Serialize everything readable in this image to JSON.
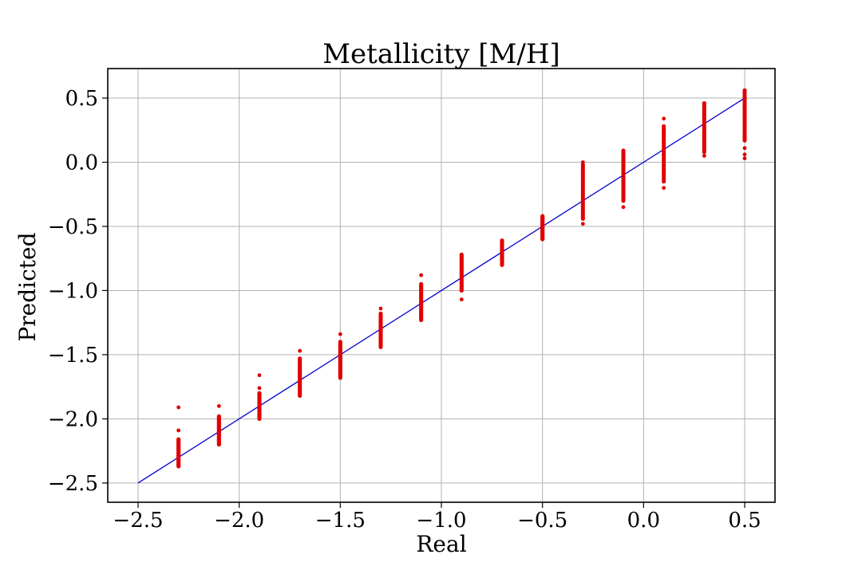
{
  "chart_data": {
    "type": "scatter",
    "title": "Metallicity [M/H]",
    "xlabel": "Real",
    "ylabel": "Predicted",
    "xlim": [
      -2.65,
      0.65
    ],
    "ylim": [
      -2.65,
      0.73
    ],
    "grid": true,
    "x_ticks": [
      -2.5,
      -2.0,
      -1.5,
      -1.0,
      -0.5,
      0.0,
      0.5
    ],
    "y_ticks": [
      -2.5,
      -2.0,
      -1.5,
      -1.0,
      -0.5,
      0.0,
      0.5
    ],
    "x_tick_labels": [
      "−2.5",
      "−2.0",
      "−1.5",
      "−1.0",
      "−0.5",
      "0.0",
      "0.5"
    ],
    "y_tick_labels": [
      "−2.5",
      "−2.0",
      "−1.5",
      "−1.0",
      "−0.5",
      "0.0",
      "0.5"
    ],
    "colors": {
      "points": "#e00000",
      "reference_line": "#0000cc"
    },
    "reference_line": {
      "x": [
        -2.5,
        0.5
      ],
      "y": [
        -2.5,
        0.5
      ]
    },
    "clusters": [
      {
        "x": -2.3,
        "y_min": -2.37,
        "y_max": -2.16,
        "outliers": [
          -2.09,
          -1.91
        ]
      },
      {
        "x": -2.1,
        "y_min": -2.2,
        "y_max": -1.98,
        "outliers": [
          -1.9
        ]
      },
      {
        "x": -1.9,
        "y_min": -2.0,
        "y_max": -1.8,
        "outliers": [
          -1.76,
          -1.66
        ]
      },
      {
        "x": -1.7,
        "y_min": -1.82,
        "y_max": -1.53,
        "outliers": [
          -1.47
        ]
      },
      {
        "x": -1.5,
        "y_min": -1.68,
        "y_max": -1.4,
        "outliers": [
          -1.34
        ]
      },
      {
        "x": -1.3,
        "y_min": -1.44,
        "y_max": -1.18,
        "outliers": [
          -1.14
        ]
      },
      {
        "x": -1.1,
        "y_min": -1.23,
        "y_max": -0.95,
        "outliers": [
          -0.88
        ]
      },
      {
        "x": -0.9,
        "y_min": -1.0,
        "y_max": -0.72,
        "outliers": [
          -1.07
        ]
      },
      {
        "x": -0.7,
        "y_min": -0.8,
        "y_max": -0.61,
        "outliers": []
      },
      {
        "x": -0.5,
        "y_min": -0.6,
        "y_max": -0.42,
        "outliers": []
      },
      {
        "x": -0.3,
        "y_min": -0.44,
        "y_max": -0.02,
        "outliers": [
          -0.48,
          0.0
        ]
      },
      {
        "x": -0.1,
        "y_min": -0.3,
        "y_max": 0.09,
        "outliers": [
          -0.35
        ]
      },
      {
        "x": 0.1,
        "y_min": -0.15,
        "y_max": 0.28,
        "outliers": [
          -0.2,
          0.34
        ]
      },
      {
        "x": 0.3,
        "y_min": 0.08,
        "y_max": 0.46,
        "outliers": [
          0.05
        ]
      },
      {
        "x": 0.5,
        "y_min": 0.17,
        "y_max": 0.56,
        "outliers": [
          0.03,
          0.06,
          0.11
        ]
      }
    ]
  }
}
